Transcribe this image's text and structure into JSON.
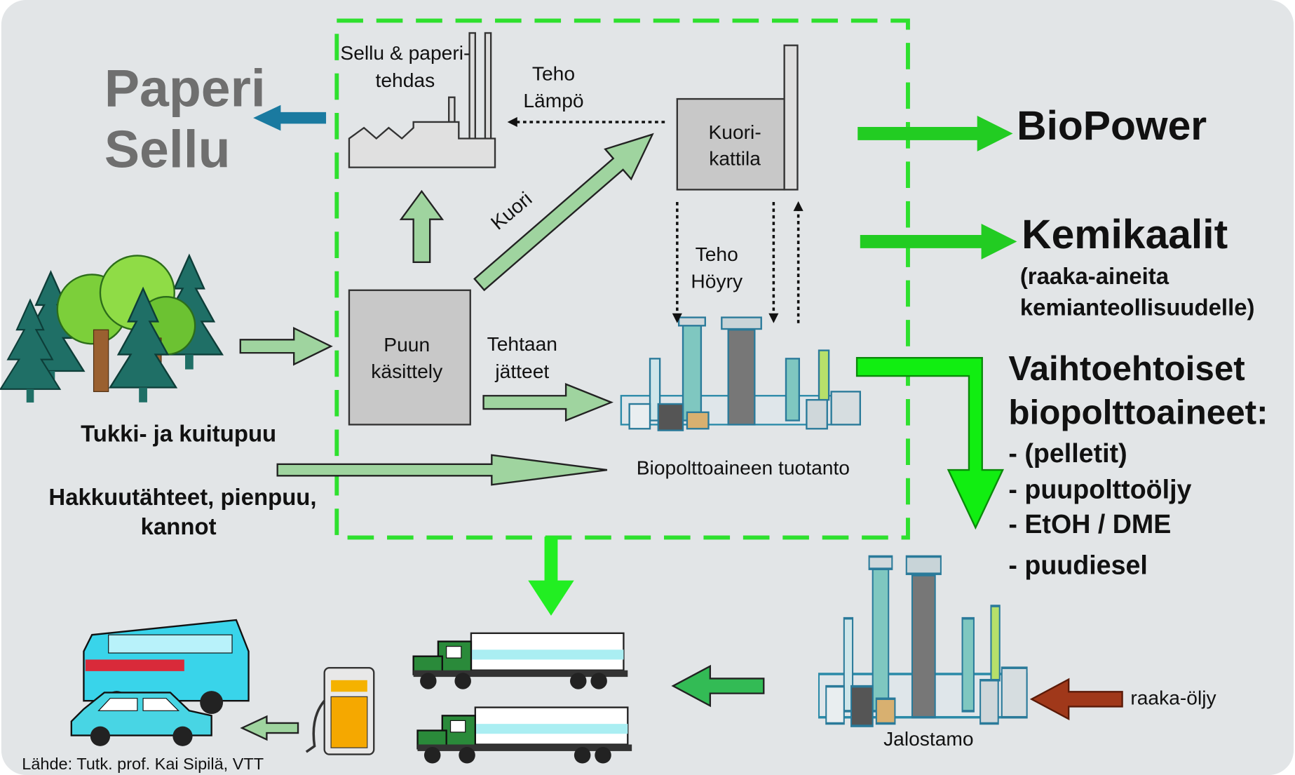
{
  "labels": {
    "paper_products": [
      "Paperi",
      "Sellu"
    ],
    "pulp_mill": [
      "Sellu & paperi-",
      "tehdas"
    ],
    "heat_flow": [
      "Teho",
      "Lämpö"
    ],
    "bark_boiler": [
      "Kuori-",
      "kattila"
    ],
    "bark": "Kuori",
    "steam_flow": [
      "Teho",
      "Höyry"
    ],
    "wood_handling": [
      "Puun",
      "käsittely"
    ],
    "mill_waste": [
      "Tehtaan",
      "jätteet"
    ],
    "logs": "Tukki- ja kuitupuu",
    "residues": [
      "Hakkuutähteet, pienpuu,",
      "kannot"
    ],
    "biofuel_production": "Biopolttoaineen tuotanto",
    "refinery": "Jalostamo",
    "crude_oil": "raaka-öljy",
    "source": "Lähde: Tutk. prof. Kai Sipilä, VTT"
  },
  "outputs": {
    "biopower": "BioPower",
    "chemicals": {
      "title": "Kemikaalit",
      "note": [
        "(raaka-aineita",
        "kemianteollisuudelle)"
      ]
    },
    "biofuels": {
      "title": [
        "Vaihtoehtoiset",
        "biopolttoaineet:"
      ],
      "items": [
        "- (pelletit)",
        "- puupolttoöljy",
        "- EtOH / DME",
        "- puudiesel"
      ]
    }
  }
}
